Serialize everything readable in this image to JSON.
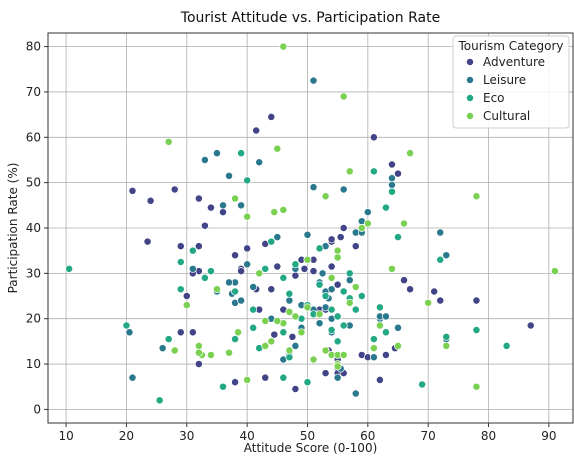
{
  "chart_data": {
    "type": "scatter",
    "title": "Tourist Attitude vs. Participation Rate",
    "xlabel": "Attitude Score (0-100)",
    "ylabel": "Participation Rate (%)",
    "xlim": [
      7,
      94
    ],
    "ylim": [
      -3,
      83
    ],
    "xticks": [
      10,
      20,
      30,
      40,
      50,
      60,
      70,
      80,
      90
    ],
    "yticks": [
      0,
      10,
      20,
      30,
      40,
      50,
      60,
      70,
      80
    ],
    "grid": true,
    "legend": {
      "title": "Tourism Category",
      "position": "top-right"
    },
    "series": [
      {
        "name": "Adventure",
        "color": "#414487",
        "points": [
          [
            21,
            48.2
          ],
          [
            24,
            46
          ],
          [
            28,
            48.5
          ],
          [
            23.5,
            37
          ],
          [
            29,
            36
          ],
          [
            32,
            36
          ],
          [
            32,
            30.5
          ],
          [
            33,
            40.5
          ],
          [
            32,
            46.5
          ],
          [
            34,
            44.5
          ],
          [
            36,
            43.5
          ],
          [
            38,
            34
          ],
          [
            39,
            31
          ],
          [
            39,
            30.5
          ],
          [
            40,
            35.5
          ],
          [
            41.5,
            61.5
          ],
          [
            44,
            64.5
          ],
          [
            43,
            36.5
          ],
          [
            44,
            26.5
          ],
          [
            42,
            22
          ],
          [
            41.5,
            26.5
          ],
          [
            44.5,
            16.5
          ],
          [
            45,
            31.5
          ],
          [
            46,
            22
          ],
          [
            47,
            12.5
          ],
          [
            47.5,
            16
          ],
          [
            49,
            33
          ],
          [
            49.5,
            31
          ],
          [
            50,
            33
          ],
          [
            51,
            33
          ],
          [
            51,
            30.5
          ],
          [
            52,
            22
          ],
          [
            53,
            22
          ],
          [
            53.5,
            13
          ],
          [
            54,
            31.5
          ],
          [
            54,
            37
          ],
          [
            55,
            27.5
          ],
          [
            55.5,
            38
          ],
          [
            56,
            40
          ],
          [
            53,
            47
          ],
          [
            54,
            37.5
          ],
          [
            55,
            11
          ],
          [
            55,
            9
          ],
          [
            55,
            8
          ],
          [
            56,
            8
          ],
          [
            58,
            36
          ],
          [
            59,
            12
          ],
          [
            60,
            11.5
          ],
          [
            61,
            60
          ],
          [
            62,
            18.5
          ],
          [
            62,
            6.5
          ],
          [
            63,
            12
          ],
          [
            64,
            54
          ],
          [
            65,
            52
          ],
          [
            66,
            28.5
          ],
          [
            64.5,
            13.5
          ],
          [
            67,
            26.5
          ],
          [
            71,
            26
          ],
          [
            72,
            24
          ],
          [
            73,
            34
          ],
          [
            78,
            24
          ],
          [
            87,
            18.5
          ],
          [
            31,
            17
          ],
          [
            29,
            17
          ],
          [
            30,
            25
          ],
          [
            31,
            30
          ],
          [
            32,
            10
          ],
          [
            38,
            6
          ],
          [
            43,
            7
          ],
          [
            48,
            4.5
          ],
          [
            48,
            29.5
          ],
          [
            53,
            8
          ]
        ]
      },
      {
        "name": "Leisure",
        "color": "#2a788e",
        "points": [
          [
            20.5,
            17
          ],
          [
            21,
            7
          ],
          [
            26,
            13.5
          ],
          [
            31,
            31
          ],
          [
            33,
            55
          ],
          [
            35,
            56.5
          ],
          [
            36,
            45
          ],
          [
            37,
            51.5
          ],
          [
            37.5,
            25.5
          ],
          [
            38,
            23.5
          ],
          [
            38,
            28
          ],
          [
            39,
            45
          ],
          [
            40,
            32
          ],
          [
            41,
            27
          ],
          [
            42,
            54.5
          ],
          [
            43,
            31
          ],
          [
            44,
            20
          ],
          [
            45,
            38
          ],
          [
            46,
            11
          ],
          [
            47,
            12
          ],
          [
            48,
            14
          ],
          [
            49,
            23
          ],
          [
            50,
            38.5
          ],
          [
            51,
            49
          ],
          [
            51,
            72.5
          ],
          [
            51,
            22
          ],
          [
            52,
            19
          ],
          [
            52,
            28
          ],
          [
            53,
            26
          ],
          [
            53,
            22.5
          ],
          [
            53,
            36
          ],
          [
            54,
            26.5
          ],
          [
            54,
            20
          ],
          [
            54,
            17
          ],
          [
            55,
            7
          ],
          [
            55.5,
            9
          ],
          [
            56,
            48.5
          ],
          [
            57,
            28.5
          ],
          [
            58,
            39
          ],
          [
            59,
            39
          ],
          [
            59,
            41.5
          ],
          [
            60,
            43.5
          ],
          [
            61,
            11.5
          ],
          [
            62,
            20
          ],
          [
            62,
            20.5
          ],
          [
            63,
            20.5
          ],
          [
            64,
            49.5
          ],
          [
            64,
            51
          ],
          [
            65,
            18
          ],
          [
            72,
            39
          ],
          [
            73,
            34
          ],
          [
            73,
            15.5
          ],
          [
            57,
            18.5
          ],
          [
            48,
            31
          ],
          [
            47,
            24
          ],
          [
            52.5,
            30
          ],
          [
            49,
            18
          ],
          [
            53.5,
            24.5
          ],
          [
            58,
            3.5
          ],
          [
            35,
            26
          ],
          [
            39,
            24
          ],
          [
            37,
            28
          ]
        ]
      },
      {
        "name": "Eco",
        "color": "#22a884",
        "points": [
          [
            10.5,
            31
          ],
          [
            20,
            18.5
          ],
          [
            25.5,
            2
          ],
          [
            29,
            32.5
          ],
          [
            29,
            26.5
          ],
          [
            31,
            35
          ],
          [
            33,
            29
          ],
          [
            34,
            30.5
          ],
          [
            36,
            5
          ],
          [
            38,
            15.5
          ],
          [
            38,
            26
          ],
          [
            39,
            56.5
          ],
          [
            40,
            50.5
          ],
          [
            41,
            22
          ],
          [
            41,
            18
          ],
          [
            43,
            31
          ],
          [
            44,
            37
          ],
          [
            46,
            17
          ],
          [
            46,
            29
          ],
          [
            47,
            11.5
          ],
          [
            47,
            25.5
          ],
          [
            48,
            32
          ],
          [
            49,
            20
          ],
          [
            50,
            6
          ],
          [
            50,
            23
          ],
          [
            51,
            21
          ],
          [
            52,
            27.5
          ],
          [
            52,
            35.5
          ],
          [
            53,
            25
          ],
          [
            53,
            13
          ],
          [
            54,
            22
          ],
          [
            55,
            20.5
          ],
          [
            55,
            15
          ],
          [
            56,
            18.5
          ],
          [
            56,
            26
          ],
          [
            57,
            24.5
          ],
          [
            57,
            30
          ],
          [
            58,
            22
          ],
          [
            59,
            25
          ],
          [
            61,
            15.5
          ],
          [
            61,
            52.5
          ],
          [
            62,
            22.5
          ],
          [
            63,
            44.5
          ],
          [
            63,
            17
          ],
          [
            64,
            48
          ],
          [
            65,
            38
          ],
          [
            69,
            5.5
          ],
          [
            72,
            33
          ],
          [
            73,
            16
          ],
          [
            78,
            17.5
          ],
          [
            83,
            14
          ],
          [
            54,
            17.5
          ],
          [
            46,
            7
          ],
          [
            44,
            15
          ],
          [
            42,
            13.5
          ],
          [
            27,
            15.5
          ]
        ]
      },
      {
        "name": "Cultural",
        "color": "#7ad151",
        "points": [
          [
            27,
            59
          ],
          [
            28,
            13
          ],
          [
            30,
            23
          ],
          [
            32,
            14
          ],
          [
            32.5,
            12
          ],
          [
            34,
            12
          ],
          [
            35,
            26.5
          ],
          [
            37,
            12.5
          ],
          [
            38,
            46.5
          ],
          [
            38.5,
            17
          ],
          [
            40,
            42.5
          ],
          [
            40,
            6.5
          ],
          [
            42,
            30
          ],
          [
            43,
            14
          ],
          [
            44,
            15
          ],
          [
            44.5,
            43.5
          ],
          [
            45,
            57.5
          ],
          [
            46,
            44
          ],
          [
            46,
            80
          ],
          [
            46,
            19
          ],
          [
            47,
            13
          ],
          [
            48,
            20.5
          ],
          [
            49,
            17
          ],
          [
            50,
            33
          ],
          [
            50,
            22.5
          ],
          [
            51,
            11
          ],
          [
            52,
            21
          ],
          [
            53,
            47
          ],
          [
            53,
            13
          ],
          [
            54,
            12
          ],
          [
            54,
            29
          ],
          [
            55,
            35
          ],
          [
            55,
            33.5
          ],
          [
            55,
            12
          ],
          [
            55,
            10
          ],
          [
            56,
            69
          ],
          [
            56,
            12
          ],
          [
            57,
            52.5
          ],
          [
            57,
            23.5
          ],
          [
            58,
            27
          ],
          [
            59,
            40
          ],
          [
            60,
            41
          ],
          [
            61,
            13.5
          ],
          [
            62,
            18.5
          ],
          [
            64,
            31
          ],
          [
            65,
            14
          ],
          [
            66,
            41
          ],
          [
            67,
            56.5
          ],
          [
            70,
            23.5
          ],
          [
            73,
            14
          ],
          [
            78,
            47
          ],
          [
            78,
            5
          ],
          [
            91,
            30.5
          ],
          [
            32,
            12.5
          ],
          [
            45,
            19.5
          ],
          [
            55,
            9.5
          ],
          [
            43,
            19.5
          ],
          [
            47,
            21.5
          ]
        ]
      }
    ]
  }
}
